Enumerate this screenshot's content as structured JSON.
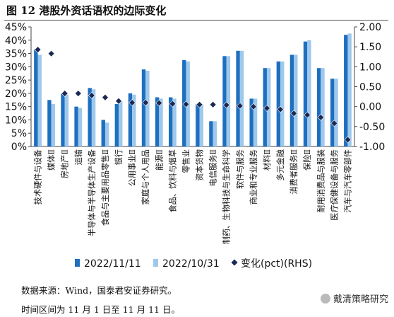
{
  "figure": {
    "title": "图 12 港股外资话语权的边际变化",
    "source_note": "数据来源：Wind，国泰君安证券研究。",
    "period_note": "时间区间为 11 月 1 日至 11 月 11 日。",
    "watermark": "戴清策略研究"
  },
  "chart_data": {
    "type": "bar",
    "categories": [
      "技术硬件与设备",
      "媒体Ⅱ",
      "房地产Ⅱ",
      "运输",
      "半导体与半导体生产设备",
      "食品与主要用品零售Ⅱ",
      "银行",
      "公用事业Ⅱ",
      "家庭与个人用品",
      "能源Ⅱ",
      "食品、饮料与烟草",
      "零售业",
      "资本货物",
      "电信服务Ⅱ",
      "制药、生物科技与生命科学",
      "软件与服务",
      "商业和专业服务",
      "材料Ⅱ",
      "多元金融",
      "消费者服务Ⅱ",
      "保险Ⅱ",
      "耐用消费品与服装",
      "医疗保健设备与服务",
      "汽车与汽车零部件"
    ],
    "series": [
      {
        "name": "2022/11/11",
        "axis": "left",
        "color": "#1f6fc0",
        "values": [
          36.5,
          17.5,
          20,
          15,
          22,
          10,
          16,
          20,
          29,
          18.5,
          18.5,
          32.5,
          16,
          9.5,
          34,
          36,
          18,
          29.5,
          32,
          34.5,
          39.5,
          29.5,
          25.5,
          42
        ]
      },
      {
        "name": "2022/10/31",
        "axis": "left",
        "color": "#9ec8ec",
        "values": [
          34.5,
          16,
          19.5,
          14.5,
          21.5,
          9,
          17,
          19.5,
          28.5,
          18,
          18,
          32,
          16,
          9.5,
          34,
          36,
          18,
          29.5,
          32,
          34.5,
          40,
          29.5,
          25.5,
          42.5
        ]
      },
      {
        "name": "变化(pct)(RHS)",
        "axis": "right",
        "color": "#1a2a55",
        "marker": "diamond",
        "values": [
          1.43,
          1.33,
          0.33,
          0.33,
          0.28,
          0.23,
          0.14,
          0.1,
          0.1,
          0.09,
          0.07,
          0.06,
          0.05,
          0.05,
          0.04,
          0.02,
          0.0,
          -0.04,
          -0.07,
          -0.17,
          -0.21,
          -0.27,
          -0.42,
          -0.83
        ]
      }
    ],
    "y_left": {
      "min": 0,
      "max": 45,
      "ticks": [
        "0%",
        "5%",
        "10%",
        "15%",
        "20%",
        "25%",
        "30%",
        "35%",
        "40%",
        "45%"
      ]
    },
    "y_right": {
      "min": -1.0,
      "max": 2.0,
      "ticks": [
        "-1.00",
        "-0.50",
        "0.00",
        "0.50",
        "1.00",
        "1.50",
        "2.00"
      ]
    },
    "legend": {
      "position": "bottom",
      "labels": [
        "2022/11/11",
        "2022/10/31",
        "变化(pct)(RHS)"
      ]
    },
    "grid": false
  }
}
